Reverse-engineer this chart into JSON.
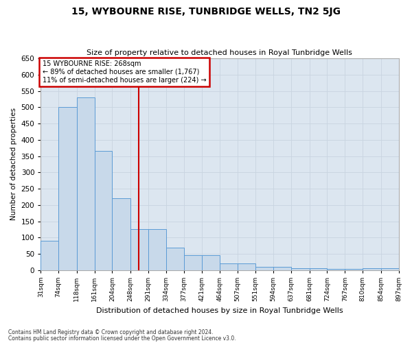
{
  "title": "15, WYBOURNE RISE, TUNBRIDGE WELLS, TN2 5JG",
  "subtitle": "Size of property relative to detached houses in Royal Tunbridge Wells",
  "xlabel": "Distribution of detached houses by size in Royal Tunbridge Wells",
  "ylabel": "Number of detached properties",
  "footnote1": "Contains HM Land Registry data © Crown copyright and database right 2024.",
  "footnote2": "Contains public sector information licensed under the Open Government Licence v3.0.",
  "annotation_line1": "15 WYBOURNE RISE: 268sqm",
  "annotation_line2": "← 89% of detached houses are smaller (1,767)",
  "annotation_line3": "11% of semi-detached houses are larger (224) →",
  "property_size": 268,
  "bin_edges": [
    31,
    74,
    118,
    161,
    204,
    248,
    291,
    334,
    377,
    421,
    464,
    507,
    551,
    594,
    637,
    681,
    724,
    767,
    810,
    854,
    897
  ],
  "bar_heights": [
    90,
    500,
    530,
    365,
    220,
    125,
    125,
    70,
    45,
    45,
    20,
    20,
    10,
    10,
    5,
    5,
    3,
    3,
    5,
    5
  ],
  "tick_labels": [
    "31sqm",
    "74sqm",
    "118sqm",
    "161sqm",
    "204sqm",
    "248sqm",
    "291sqm",
    "334sqm",
    "377sqm",
    "421sqm",
    "464sqm",
    "507sqm",
    "551sqm",
    "594sqm",
    "637sqm",
    "681sqm",
    "724sqm",
    "767sqm",
    "810sqm",
    "854sqm",
    "897sqm"
  ],
  "bar_color": "#c8d9ea",
  "bar_edge_color": "#5b9bd5",
  "vline_color": "#cc0000",
  "annotation_box_edgecolor": "#cc0000",
  "grid_color": "#c8d4e0",
  "background_color": "#dce6f0",
  "fig_bg": "#ffffff",
  "ylim": [
    0,
    650
  ],
  "yticks": [
    0,
    50,
    100,
    150,
    200,
    250,
    300,
    350,
    400,
    450,
    500,
    550,
    600,
    650
  ]
}
